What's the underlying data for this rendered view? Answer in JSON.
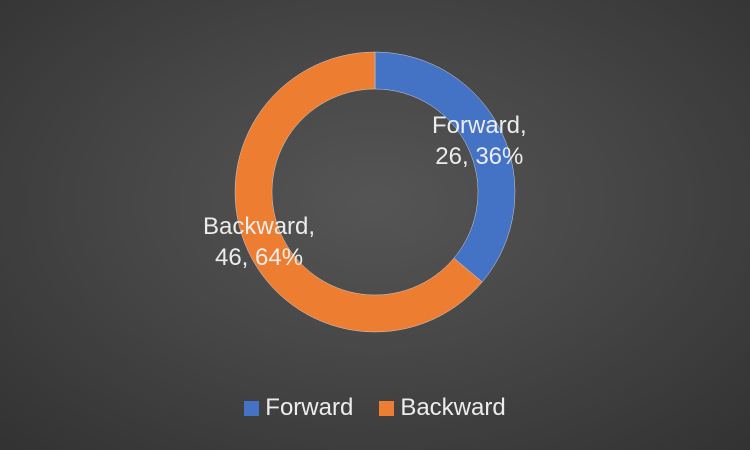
{
  "chart_data": {
    "type": "pie",
    "variant": "donut",
    "title": "",
    "slices": [
      {
        "name": "Forward",
        "value": 26,
        "percent": "36%",
        "color": "#4472C4"
      },
      {
        "name": "Backward",
        "value": 46,
        "percent": "64%",
        "color": "#ED7D31"
      }
    ],
    "legend": {
      "placement": "bottom",
      "items": [
        "Forward",
        "Backward"
      ]
    }
  },
  "labels": {
    "forward": {
      "line1": "Forward,",
      "line2": "26, 36%"
    },
    "backward": {
      "line1": "Backward,",
      "line2": "46, 64%"
    }
  }
}
